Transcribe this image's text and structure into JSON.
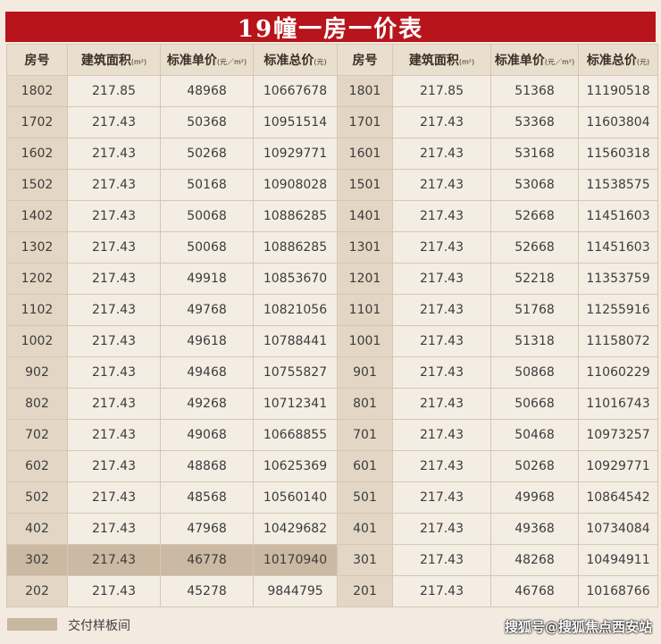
{
  "title": "19幢一房一价表",
  "headers": {
    "room": "房号",
    "area": "建筑面积",
    "area_unit": "(m²)",
    "unit_price": "标准单价",
    "unit_price_unit": "(元／m²)",
    "total_price": "标准总价",
    "total_price_unit": "(元)"
  },
  "rows": [
    {
      "l_room": "1802",
      "l_area": "217.85",
      "l_unit": "48968",
      "l_total": "10667678",
      "r_room": "1801",
      "r_area": "217.85",
      "r_unit": "51368",
      "r_total": "11190518"
    },
    {
      "l_room": "1702",
      "l_area": "217.43",
      "l_unit": "50368",
      "l_total": "10951514",
      "r_room": "1701",
      "r_area": "217.43",
      "r_unit": "53368",
      "r_total": "11603804"
    },
    {
      "l_room": "1602",
      "l_area": "217.43",
      "l_unit": "50268",
      "l_total": "10929771",
      "r_room": "1601",
      "r_area": "217.43",
      "r_unit": "53168",
      "r_total": "11560318"
    },
    {
      "l_room": "1502",
      "l_area": "217.43",
      "l_unit": "50168",
      "l_total": "10908028",
      "r_room": "1501",
      "r_area": "217.43",
      "r_unit": "53068",
      "r_total": "11538575"
    },
    {
      "l_room": "1402",
      "l_area": "217.43",
      "l_unit": "50068",
      "l_total": "10886285",
      "r_room": "1401",
      "r_area": "217.43",
      "r_unit": "52668",
      "r_total": "11451603"
    },
    {
      "l_room": "1302",
      "l_area": "217.43",
      "l_unit": "50068",
      "l_total": "10886285",
      "r_room": "1301",
      "r_area": "217.43",
      "r_unit": "52668",
      "r_total": "11451603"
    },
    {
      "l_room": "1202",
      "l_area": "217.43",
      "l_unit": "49918",
      "l_total": "10853670",
      "r_room": "1201",
      "r_area": "217.43",
      "r_unit": "52218",
      "r_total": "11353759"
    },
    {
      "l_room": "1102",
      "l_area": "217.43",
      "l_unit": "49768",
      "l_total": "10821056",
      "r_room": "1101",
      "r_area": "217.43",
      "r_unit": "51768",
      "r_total": "11255916"
    },
    {
      "l_room": "1002",
      "l_area": "217.43",
      "l_unit": "49618",
      "l_total": "10788441",
      "r_room": "1001",
      "r_area": "217.43",
      "r_unit": "51318",
      "r_total": "11158072"
    },
    {
      "l_room": "902",
      "l_area": "217.43",
      "l_unit": "49468",
      "l_total": "10755827",
      "r_room": "901",
      "r_area": "217.43",
      "r_unit": "50868",
      "r_total": "11060229"
    },
    {
      "l_room": "802",
      "l_area": "217.43",
      "l_unit": "49268",
      "l_total": "10712341",
      "r_room": "801",
      "r_area": "217.43",
      "r_unit": "50668",
      "r_total": "11016743"
    },
    {
      "l_room": "702",
      "l_area": "217.43",
      "l_unit": "49068",
      "l_total": "10668855",
      "r_room": "701",
      "r_area": "217.43",
      "r_unit": "50468",
      "r_total": "10973257"
    },
    {
      "l_room": "602",
      "l_area": "217.43",
      "l_unit": "48868",
      "l_total": "10625369",
      "r_room": "601",
      "r_area": "217.43",
      "r_unit": "50268",
      "r_total": "10929771"
    },
    {
      "l_room": "502",
      "l_area": "217.43",
      "l_unit": "48568",
      "l_total": "10560140",
      "r_room": "501",
      "r_area": "217.43",
      "r_unit": "49968",
      "r_total": "10864542"
    },
    {
      "l_room": "402",
      "l_area": "217.43",
      "l_unit": "47968",
      "l_total": "10429682",
      "r_room": "401",
      "r_area": "217.43",
      "r_unit": "49368",
      "r_total": "10734084"
    },
    {
      "l_room": "302",
      "l_area": "217.43",
      "l_unit": "46778",
      "l_total": "10170940",
      "r_room": "301",
      "r_area": "217.43",
      "r_unit": "48268",
      "r_total": "10494911",
      "sample": true
    },
    {
      "l_room": "202",
      "l_area": "217.43",
      "l_unit": "45278",
      "l_total": "9844795",
      "r_room": "201",
      "r_area": "217.43",
      "r_unit": "46768",
      "r_total": "10168766"
    }
  ],
  "legend": {
    "label": "交付样板间",
    "swatch_color": "#c8b7a1"
  },
  "watermark": "搜狐号@搜狐焦点西安站",
  "colors": {
    "title_bg": "#b8141b",
    "header_bg": "#e9dfcf",
    "room_col_bg": "#e3d6c4",
    "cell_bg": "#f4ede3",
    "sample_row_bg": "#cbb9a3"
  }
}
